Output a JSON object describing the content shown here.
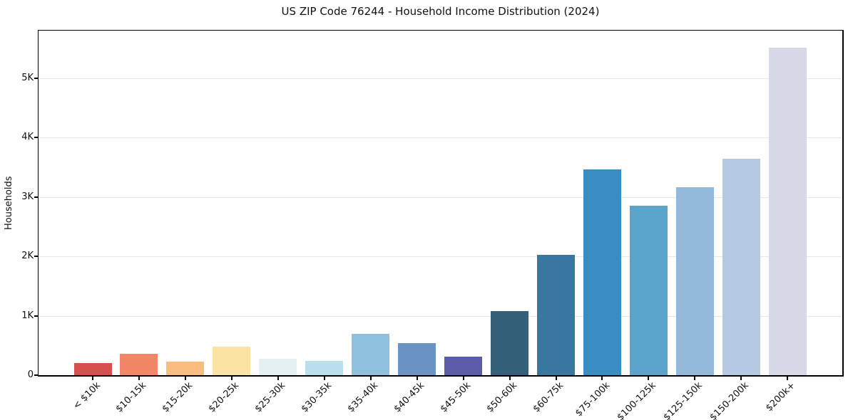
{
  "chart_data": {
    "type": "bar",
    "title": "US ZIP Code 76244 - Household Income Distribution (2024)",
    "ylabel": "Households",
    "xlabel": "",
    "categories": [
      "< $10k",
      "$10-15k",
      "$15-20k",
      "$20-25k",
      "$25-30k",
      "$30-35k",
      "$35-40k",
      "$40-45k",
      "$45-50k",
      "$50-60k",
      "$60-75k",
      "$75-100k",
      "$100-125k",
      "$125-150k",
      "$150-200k",
      "$200k+"
    ],
    "values": [
      205,
      365,
      230,
      485,
      275,
      240,
      690,
      535,
      310,
      1085,
      2020,
      3465,
      2850,
      3160,
      3640,
      5515
    ],
    "bar_colors": [
      "#d6504e",
      "#f28768",
      "#fabd7d",
      "#fbe3a3",
      "#e4f0f2",
      "#badfed",
      "#8fc0dd",
      "#6b93c4",
      "#5c5baa",
      "#35607a",
      "#3878a0",
      "#388dc5",
      "#5ba4cb",
      "#92b8da",
      "#b6c9e2",
      "#d7d9e7"
    ],
    "y_ticks": [
      {
        "value": 0,
        "label": "0"
      },
      {
        "value": 1000,
        "label": "1K"
      },
      {
        "value": 2000,
        "label": "2K"
      },
      {
        "value": 3000,
        "label": "3K"
      },
      {
        "value": 4000,
        "label": "4K"
      },
      {
        "value": 5000,
        "label": "5K"
      }
    ],
    "ylim": [
      0,
      5800
    ],
    "grid": true,
    "legend": false,
    "style": {
      "grid_color": "#e7e7e7",
      "axis_color": "#000000",
      "text_color": "#111111",
      "background": "#ffffff"
    }
  }
}
